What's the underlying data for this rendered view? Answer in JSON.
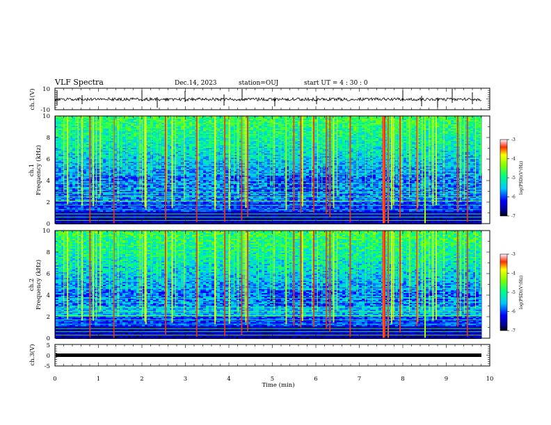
{
  "header": {
    "title": "VLF Spectra",
    "date": "Dec.14, 2023",
    "station": "station=OUJ",
    "start": "start  UT =   4 : 30 : 0"
  },
  "colors": {
    "background": "#ffffff",
    "axes": "#000000",
    "trace": "#000000"
  },
  "chart_data": [
    {
      "type": "line",
      "ylabel": "ch.1(V)",
      "ylim": [
        -10,
        10
      ],
      "yticks": [
        "10",
        "-10"
      ],
      "xlim": [
        0,
        10
      ]
    },
    {
      "type": "heatmap",
      "ylabel_line1": "ch.1",
      "ylabel_line2": "Frequency (kHz)",
      "ylim": [
        0,
        10
      ],
      "yticks": [
        "0",
        "2",
        "4",
        "6",
        "8",
        "10"
      ],
      "xlim": [
        0,
        10
      ],
      "colorbar": {
        "label": "log(PSD)(V²/Hz)",
        "range": [
          -7,
          -3
        ],
        "ticks": [
          "-3",
          "-4",
          "-5",
          "-6",
          "-7"
        ]
      }
    },
    {
      "type": "heatmap",
      "ylabel_line1": "ch.2",
      "ylabel_line2": "Frequency (kHz)",
      "ylim": [
        0,
        10
      ],
      "yticks": [
        "0",
        "2",
        "4",
        "6",
        "8",
        "10"
      ],
      "xlim": [
        0,
        10
      ],
      "colorbar": {
        "label": "log(PSD)(V²/Hz)",
        "range": [
          -7,
          -3
        ],
        "ticks": [
          "-3",
          "-4",
          "-5",
          "-6",
          "-7"
        ]
      }
    },
    {
      "type": "line",
      "ylabel": "ch.3(V)",
      "ylim": [
        -5,
        5
      ],
      "yticks": [
        "5",
        "0",
        "-5"
      ],
      "xlim": [
        0,
        10
      ],
      "xlabel": "Time (min)",
      "xticks": [
        "0",
        "1",
        "2",
        "3",
        "4",
        "5",
        "6",
        "7",
        "8",
        "9",
        "10"
      ]
    }
  ]
}
